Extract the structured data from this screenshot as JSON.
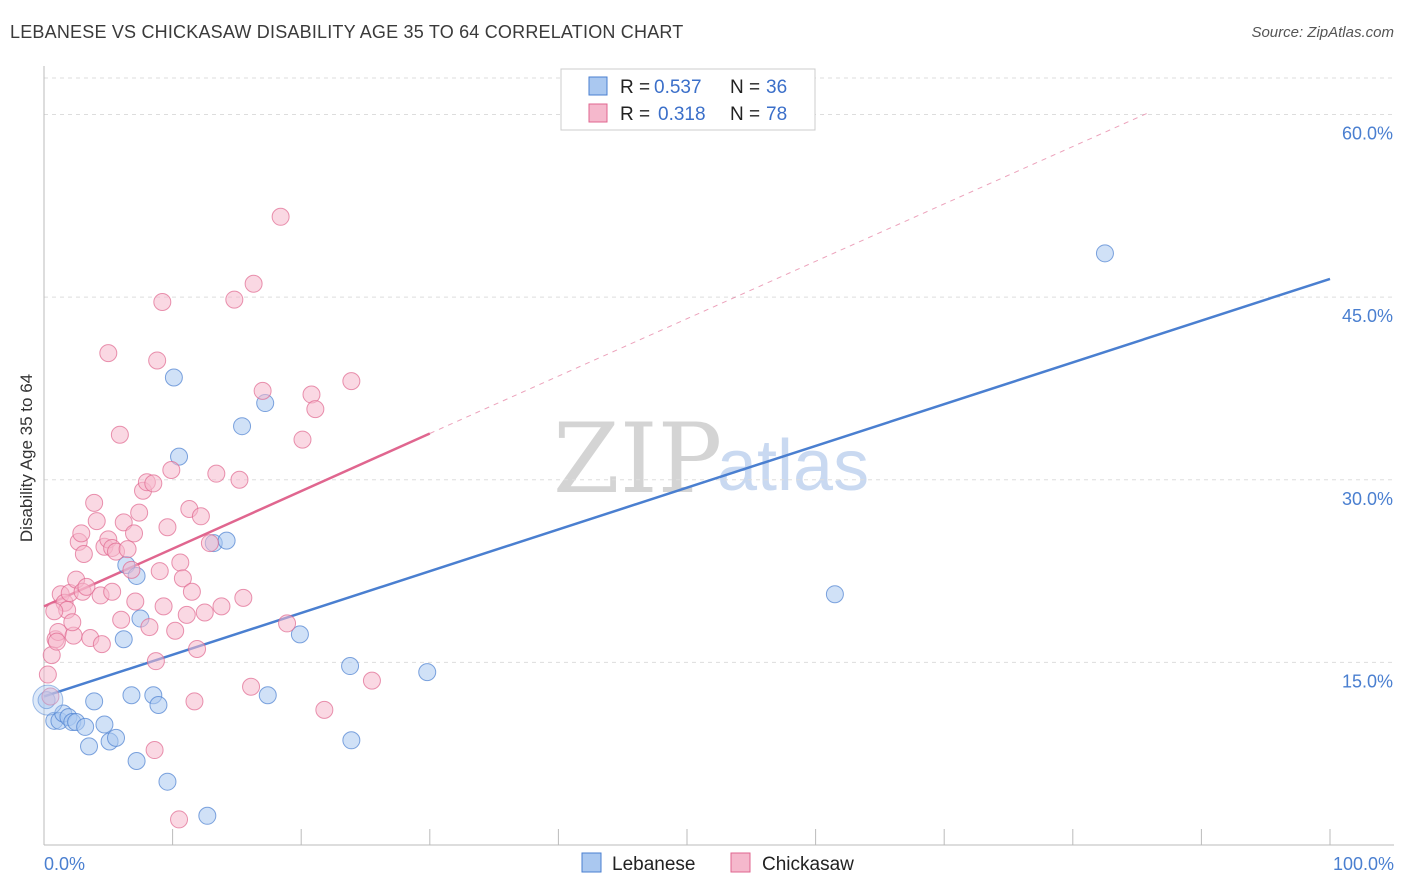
{
  "title": "LEBANESE VS CHICKASAW DISABILITY AGE 35 TO 64 CORRELATION CHART",
  "source": "Source: ZipAtlas.com",
  "colors": {
    "lebanese": "#4a7fd0",
    "lebanese_fill": "#aac8f0",
    "chickasaw": "#e0668f",
    "chickasaw_fill": "#f5b8cc",
    "tick": "#4a7fd0",
    "grid": "#dddddd"
  },
  "legend": {
    "rows": [
      {
        "r_label": "R =",
        "r_value": "0.537",
        "n_label": "N =",
        "n_value": "36"
      },
      {
        "r_label": "R =",
        "r_value": "0.318",
        "n_label": "N =",
        "n_value": "78"
      }
    ]
  },
  "watermark": {
    "zip": "ZIP",
    "atlas": "atlas"
  },
  "chart_data": {
    "type": "scatter",
    "xlabel": "",
    "ylabel": "Disability Age 35 to 64",
    "xlim": [
      0,
      100
    ],
    "ylim": [
      0,
      63
    ],
    "x_tick_labels": {
      "left": "0.0%",
      "right": "100.0%"
    },
    "y_ticks": [
      15,
      30,
      45,
      60
    ],
    "y_tick_labels": [
      "15.0%",
      "30.0%",
      "45.0%",
      "60.0%"
    ],
    "grid": true,
    "series": [
      {
        "name": "Lebanese",
        "trend": {
          "x0": 0,
          "y0": 12.2,
          "x1": 100,
          "y1": 46.5,
          "dashed_to": null
        },
        "points": [
          [
            0.2,
            11.9
          ],
          [
            0.8,
            10.2
          ],
          [
            1.2,
            10.2
          ],
          [
            1.5,
            10.8
          ],
          [
            1.9,
            10.5
          ],
          [
            2.2,
            10.1
          ],
          [
            2.5,
            10.1
          ],
          [
            3.2,
            9.7
          ],
          [
            3.5,
            8.1
          ],
          [
            3.9,
            11.8
          ],
          [
            4.7,
            9.9
          ],
          [
            5.1,
            8.5
          ],
          [
            5.6,
            8.8
          ],
          [
            6.2,
            16.9
          ],
          [
            6.4,
            23.0
          ],
          [
            6.8,
            12.3
          ],
          [
            7.2,
            6.9
          ],
          [
            7.5,
            18.6
          ],
          [
            8.5,
            12.3
          ],
          [
            8.9,
            11.5
          ],
          [
            9.6,
            5.2
          ],
          [
            10.1,
            38.4
          ],
          [
            10.5,
            31.9
          ],
          [
            12.7,
            2.4
          ],
          [
            13.2,
            24.8
          ],
          [
            14.2,
            25.0
          ],
          [
            15.4,
            34.4
          ],
          [
            17.2,
            36.3
          ],
          [
            17.4,
            12.3
          ],
          [
            19.9,
            17.3
          ],
          [
            23.8,
            14.7
          ],
          [
            23.9,
            8.6
          ],
          [
            29.8,
            14.2
          ],
          [
            61.5,
            20.6
          ],
          [
            82.5,
            48.6
          ],
          [
            7.2,
            22.1
          ]
        ]
      },
      {
        "name": "Chickasaw",
        "trend": {
          "x0": 0,
          "y0": 19.6,
          "x1": 30,
          "y1": 33.8,
          "dashed_to": {
            "x": 86,
            "y": 60.2
          }
        },
        "points": [
          [
            0.3,
            14.0
          ],
          [
            0.6,
            15.6
          ],
          [
            0.9,
            16.9
          ],
          [
            1.1,
            17.5
          ],
          [
            1.3,
            20.6
          ],
          [
            1.6,
            19.9
          ],
          [
            1.8,
            19.3
          ],
          [
            2.0,
            20.7
          ],
          [
            2.3,
            17.2
          ],
          [
            2.5,
            21.8
          ],
          [
            2.7,
            24.9
          ],
          [
            3.0,
            20.8
          ],
          [
            3.3,
            21.2
          ],
          [
            3.6,
            17.0
          ],
          [
            3.9,
            28.1
          ],
          [
            4.1,
            26.6
          ],
          [
            4.4,
            20.5
          ],
          [
            4.7,
            24.5
          ],
          [
            5.0,
            25.1
          ],
          [
            5.3,
            24.4
          ],
          [
            5.6,
            24.1
          ],
          [
            5.9,
            33.7
          ],
          [
            6.2,
            26.5
          ],
          [
            6.5,
            24.3
          ],
          [
            6.8,
            22.6
          ],
          [
            7.1,
            20.0
          ],
          [
            7.4,
            27.3
          ],
          [
            7.7,
            29.1
          ],
          [
            8.0,
            29.8
          ],
          [
            8.2,
            17.9
          ],
          [
            8.5,
            29.7
          ],
          [
            8.8,
            39.8
          ],
          [
            9.0,
            22.5
          ],
          [
            9.3,
            19.6
          ],
          [
            9.6,
            26.1
          ],
          [
            9.9,
            30.8
          ],
          [
            10.2,
            17.6
          ],
          [
            10.6,
            23.2
          ],
          [
            10.8,
            21.9
          ],
          [
            11.1,
            18.9
          ],
          [
            11.3,
            27.6
          ],
          [
            11.7,
            11.8
          ],
          [
            11.9,
            16.1
          ],
          [
            12.2,
            27.0
          ],
          [
            12.5,
            19.1
          ],
          [
            13.4,
            30.5
          ],
          [
            13.8,
            19.6
          ],
          [
            14.8,
            44.8
          ],
          [
            15.2,
            30.0
          ],
          [
            15.5,
            20.3
          ],
          [
            16.1,
            13.0
          ],
          [
            16.3,
            46.1
          ],
          [
            17.0,
            37.3
          ],
          [
            18.4,
            51.6
          ],
          [
            18.9,
            18.2
          ],
          [
            20.1,
            33.3
          ],
          [
            20.8,
            37.0
          ],
          [
            21.1,
            35.8
          ],
          [
            21.8,
            11.1
          ],
          [
            23.9,
            38.1
          ],
          [
            25.5,
            13.5
          ],
          [
            5.0,
            40.4
          ],
          [
            9.2,
            44.6
          ],
          [
            8.6,
            7.8
          ],
          [
            10.5,
            2.1
          ],
          [
            0.5,
            12.2
          ],
          [
            1.0,
            16.7
          ],
          [
            2.2,
            18.3
          ],
          [
            3.1,
            23.9
          ],
          [
            4.5,
            16.5
          ],
          [
            6.0,
            18.5
          ],
          [
            7.0,
            25.6
          ],
          [
            8.7,
            15.1
          ],
          [
            11.5,
            20.8
          ],
          [
            12.9,
            24.8
          ],
          [
            0.8,
            19.2
          ],
          [
            2.9,
            25.6
          ],
          [
            5.3,
            20.8
          ]
        ]
      }
    ]
  }
}
